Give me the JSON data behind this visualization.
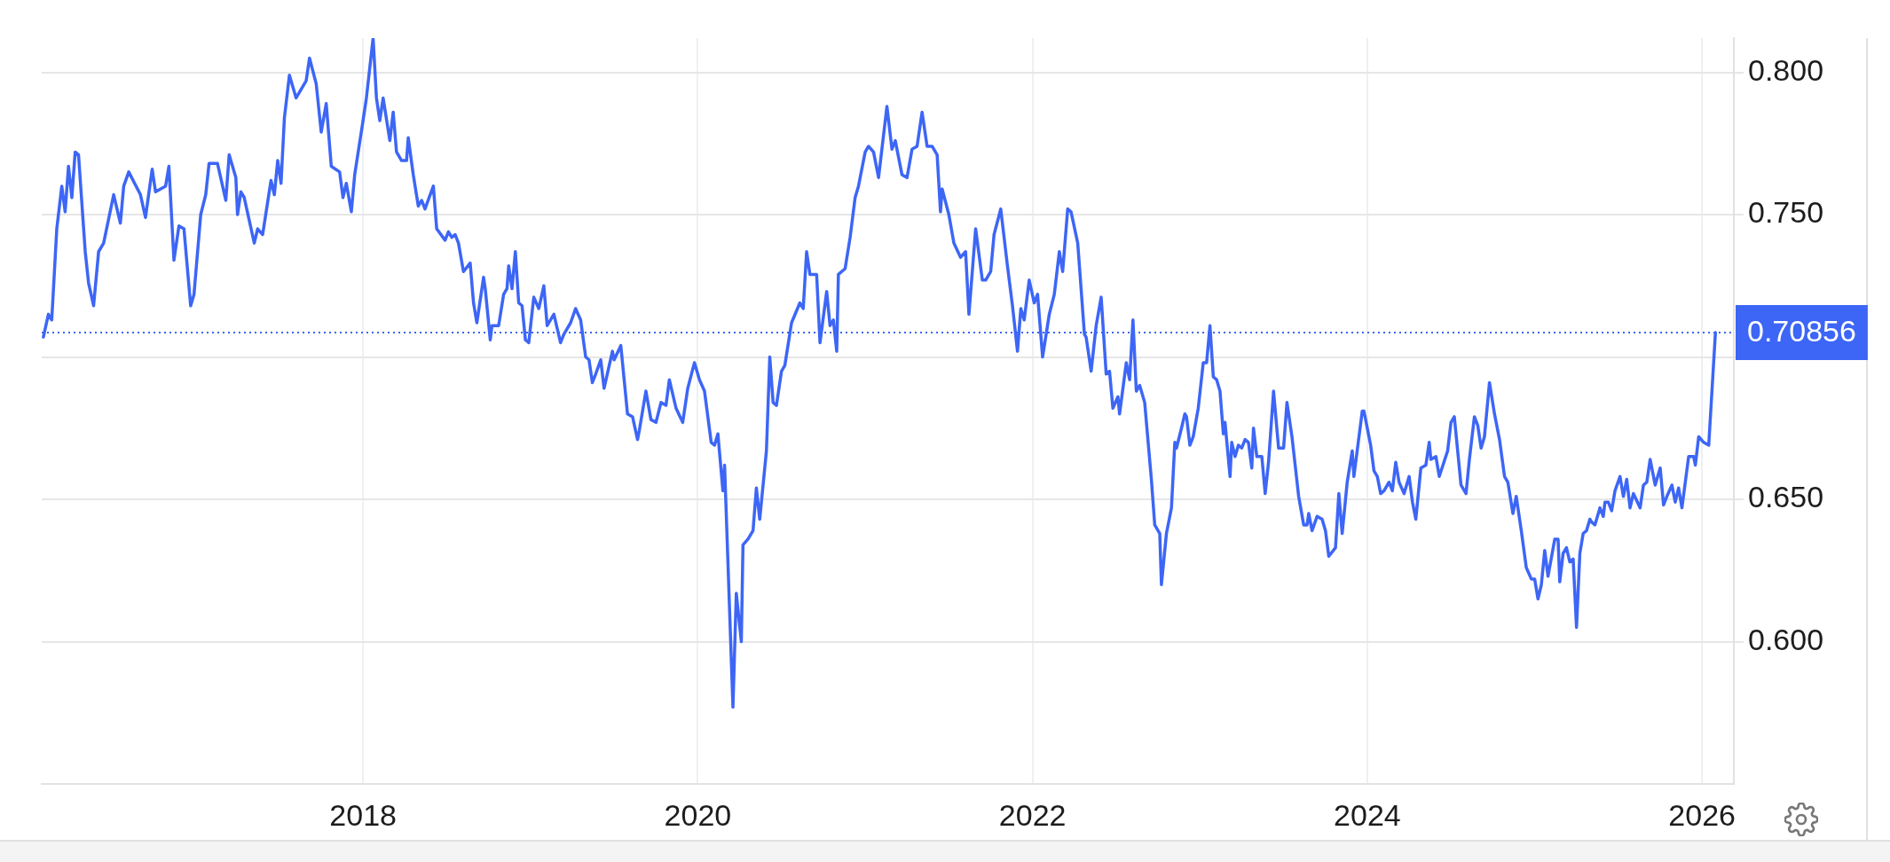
{
  "chart_data": {
    "type": "line",
    "color": "#3d66f6",
    "line_style": "solid",
    "grid": true,
    "xlim": [
      2016.08,
      2026.19
    ],
    "xticks": [
      2018,
      2020,
      2022,
      2024,
      2026
    ],
    "ylim": [
      0.55,
      0.812
    ],
    "yticks": [
      {
        "value": 0.6,
        "label": "0.600"
      },
      {
        "value": 0.65,
        "label": "0.650"
      },
      {
        "value": 0.7,
        "label": null
      },
      {
        "value": 0.75,
        "label": "0.750"
      },
      {
        "value": 0.8,
        "label": "0.800"
      }
    ],
    "ref_lines": [
      {
        "axis": "y",
        "value": 0.70856,
        "label": "0.70856",
        "color": "#3d66f6",
        "line_style": "dotted"
      }
    ],
    "x": [
      2016.09,
      2016.12,
      2016.14,
      2016.17,
      2016.2,
      2016.22,
      2016.24,
      2016.26,
      2016.28,
      2016.3,
      2016.34,
      2016.36,
      2016.39,
      2016.42,
      2016.45,
      2016.51,
      2016.55,
      2016.57,
      2016.6,
      2016.67,
      2016.7,
      2016.74,
      2016.76,
      2016.82,
      2016.84,
      2016.87,
      2016.9,
      2016.93,
      2016.97,
      2016.99,
      2017.03,
      2017.06,
      2017.08,
      2017.13,
      2017.18,
      2017.2,
      2017.24,
      2017.25,
      2017.27,
      2017.29,
      2017.35,
      2017.37,
      2017.4,
      2017.45,
      2017.47,
      2017.49,
      2017.51,
      2017.53,
      2017.56,
      2017.6,
      2017.66,
      2017.68,
      2017.72,
      2017.75,
      2017.78,
      2017.81,
      2017.86,
      2017.88,
      2017.9,
      2017.93,
      2017.95,
      2018.0,
      2018.02,
      2018.06,
      2018.08,
      2018.1,
      2018.12,
      2018.16,
      2018.18,
      2018.2,
      2018.23,
      2018.26,
      2018.27,
      2018.3,
      2018.33,
      2018.35,
      2018.37,
      2018.42,
      2018.44,
      2018.49,
      2018.51,
      2018.53,
      2018.55,
      2018.57,
      2018.6,
      2018.64,
      2018.66,
      2018.68,
      2018.72,
      2018.73,
      2018.76,
      2018.77,
      2018.81,
      2018.84,
      2018.86,
      2018.87,
      2018.89,
      2018.91,
      2018.93,
      2018.95,
      2018.97,
      2018.99,
      2019.02,
      2019.05,
      2019.08,
      2019.1,
      2019.14,
      2019.18,
      2019.2,
      2019.24,
      2019.27,
      2019.3,
      2019.33,
      2019.35,
      2019.37,
      2019.39,
      2019.42,
      2019.44,
      2019.49,
      2019.5,
      2019.54,
      2019.58,
      2019.61,
      2019.64,
      2019.65,
      2019.69,
      2019.72,
      2019.75,
      2019.78,
      2019.81,
      2019.83,
      2019.87,
      2019.91,
      2019.94,
      2019.98,
      2020.01,
      2020.04,
      2020.08,
      2020.1,
      2020.12,
      2020.15,
      2020.16,
      2020.21,
      2020.23,
      2020.26,
      2020.27,
      2020.3,
      2020.33,
      2020.35,
      2020.37,
      2020.41,
      2020.43,
      2020.45,
      2020.47,
      2020.5,
      2020.52,
      2020.56,
      2020.61,
      2020.63,
      2020.65,
      2020.67,
      2020.71,
      2020.73,
      2020.77,
      2020.79,
      2020.81,
      2020.83,
      2020.84,
      2020.88,
      2020.91,
      2020.94,
      2020.96,
      2021.0,
      2021.02,
      2021.05,
      2021.08,
      2021.13,
      2021.16,
      2021.18,
      2021.22,
      2021.25,
      2021.28,
      2021.31,
      2021.34,
      2021.37,
      2021.4,
      2021.43,
      2021.45,
      2021.46,
      2021.5,
      2021.53,
      2021.57,
      2021.6,
      2021.62,
      2021.66,
      2021.7,
      2021.72,
      2021.75,
      2021.77,
      2021.81,
      2021.85,
      2021.88,
      2021.91,
      2021.93,
      2021.95,
      2021.98,
      2022.01,
      2022.03,
      2022.06,
      2022.1,
      2022.13,
      2022.16,
      2022.18,
      2022.21,
      2022.23,
      2022.27,
      2022.31,
      2022.32,
      2022.35,
      2022.38,
      2022.41,
      2022.44,
      2022.46,
      2022.48,
      2022.51,
      2022.52,
      2022.56,
      2022.58,
      2022.6,
      2022.62,
      2022.64,
      2022.67,
      2022.71,
      2022.73,
      2022.76,
      2022.77,
      2022.8,
      2022.83,
      2022.85,
      2022.86,
      2022.89,
      2022.91,
      2022.92,
      2022.94,
      2022.96,
      2022.99,
      2023.02,
      2023.04,
      2023.06,
      2023.08,
      2023.1,
      2023.12,
      2023.14,
      2023.15,
      2023.18,
      2023.19,
      2023.21,
      2023.23,
      2023.25,
      2023.27,
      2023.29,
      2023.31,
      2023.32,
      2023.34,
      2023.37,
      2023.39,
      2023.41,
      2023.44,
      2023.47,
      2023.5,
      2023.52,
      2023.55,
      2023.59,
      2023.62,
      2023.64,
      2023.65,
      2023.67,
      2023.7,
      2023.73,
      2023.75,
      2023.77,
      2023.81,
      2023.83,
      2023.85,
      2023.88,
      2023.91,
      2023.92,
      2023.97,
      2023.98,
      2024.01,
      2024.02,
      2024.04,
      2024.06,
      2024.08,
      2024.1,
      2024.13,
      2024.15,
      2024.17,
      2024.19,
      2024.22,
      2024.25,
      2024.27,
      2024.29,
      2024.32,
      2024.35,
      2024.37,
      2024.38,
      2024.41,
      2024.43,
      2024.48,
      2024.5,
      2024.52,
      2024.56,
      2024.59,
      2024.61,
      2024.64,
      2024.66,
      2024.68,
      2024.7,
      2024.73,
      2024.76,
      2024.79,
      2024.82,
      2024.84,
      2024.87,
      2024.89,
      2024.92,
      2024.95,
      2024.98,
      2025.0,
      2025.02,
      2025.04,
      2025.06,
      2025.08,
      2025.12,
      2025.14,
      2025.15,
      2025.17,
      2025.19,
      2025.21,
      2025.23,
      2025.25,
      2025.27,
      2025.29,
      2025.31,
      2025.33,
      2025.34,
      2025.36,
      2025.39,
      2025.41,
      2025.42,
      2025.44,
      2025.46,
      2025.48,
      2025.51,
      2025.53,
      2025.55,
      2025.57,
      2025.59,
      2025.63,
      2025.65,
      2025.67,
      2025.69,
      2025.72,
      2025.75,
      2025.77,
      2025.79,
      2025.82,
      2025.84,
      2025.86,
      2025.88,
      2025.92,
      2025.95,
      2025.96,
      2025.98,
      2026.01,
      2026.04,
      2026.08
    ],
    "values": [
      0.707,
      0.715,
      0.713,
      0.745,
      0.76,
      0.751,
      0.767,
      0.756,
      0.772,
      0.771,
      0.737,
      0.726,
      0.718,
      0.737,
      0.74,
      0.757,
      0.747,
      0.76,
      0.765,
      0.757,
      0.749,
      0.766,
      0.758,
      0.76,
      0.767,
      0.734,
      0.746,
      0.745,
      0.718,
      0.722,
      0.75,
      0.757,
      0.768,
      0.768,
      0.755,
      0.771,
      0.763,
      0.75,
      0.758,
      0.756,
      0.74,
      0.745,
      0.743,
      0.762,
      0.757,
      0.769,
      0.761,
      0.784,
      0.799,
      0.791,
      0.797,
      0.805,
      0.796,
      0.779,
      0.789,
      0.767,
      0.765,
      0.756,
      0.761,
      0.751,
      0.764,
      0.783,
      0.791,
      0.812,
      0.791,
      0.783,
      0.791,
      0.776,
      0.786,
      0.772,
      0.769,
      0.769,
      0.777,
      0.764,
      0.753,
      0.755,
      0.752,
      0.76,
      0.745,
      0.741,
      0.744,
      0.742,
      0.743,
      0.74,
      0.73,
      0.733,
      0.719,
      0.712,
      0.728,
      0.724,
      0.706,
      0.711,
      0.711,
      0.722,
      0.724,
      0.732,
      0.724,
      0.737,
      0.719,
      0.718,
      0.706,
      0.705,
      0.721,
      0.717,
      0.725,
      0.711,
      0.715,
      0.705,
      0.708,
      0.712,
      0.717,
      0.713,
      0.7,
      0.699,
      0.691,
      0.694,
      0.699,
      0.689,
      0.702,
      0.699,
      0.704,
      0.68,
      0.679,
      0.671,
      0.674,
      0.688,
      0.678,
      0.677,
      0.684,
      0.683,
      0.692,
      0.682,
      0.677,
      0.689,
      0.698,
      0.692,
      0.688,
      0.67,
      0.669,
      0.673,
      0.653,
      0.662,
      0.577,
      0.617,
      0.6,
      0.634,
      0.636,
      0.639,
      0.654,
      0.643,
      0.667,
      0.7,
      0.684,
      0.683,
      0.695,
      0.697,
      0.712,
      0.719,
      0.717,
      0.737,
      0.729,
      0.729,
      0.705,
      0.723,
      0.711,
      0.713,
      0.702,
      0.729,
      0.731,
      0.742,
      0.756,
      0.76,
      0.772,
      0.774,
      0.772,
      0.763,
      0.788,
      0.773,
      0.776,
      0.764,
      0.763,
      0.773,
      0.774,
      0.786,
      0.774,
      0.774,
      0.771,
      0.751,
      0.759,
      0.75,
      0.74,
      0.735,
      0.737,
      0.715,
      0.745,
      0.727,
      0.727,
      0.73,
      0.743,
      0.752,
      0.732,
      0.718,
      0.702,
      0.717,
      0.713,
      0.727,
      0.719,
      0.722,
      0.7,
      0.715,
      0.722,
      0.737,
      0.73,
      0.752,
      0.751,
      0.74,
      0.708,
      0.707,
      0.695,
      0.711,
      0.721,
      0.694,
      0.695,
      0.682,
      0.686,
      0.68,
      0.698,
      0.692,
      0.713,
      0.688,
      0.69,
      0.684,
      0.657,
      0.641,
      0.638,
      0.62,
      0.638,
      0.647,
      0.67,
      0.668,
      0.675,
      0.68,
      0.679,
      0.669,
      0.672,
      0.682,
      0.698,
      0.698,
      0.711,
      0.693,
      0.692,
      0.688,
      0.673,
      0.677,
      0.658,
      0.67,
      0.665,
      0.669,
      0.668,
      0.671,
      0.67,
      0.661,
      0.675,
      0.665,
      0.665,
      0.652,
      0.663,
      0.688,
      0.668,
      0.668,
      0.684,
      0.672,
      0.651,
      0.641,
      0.641,
      0.645,
      0.639,
      0.644,
      0.643,
      0.639,
      0.63,
      0.633,
      0.652,
      0.638,
      0.656,
      0.667,
      0.658,
      0.681,
      0.681,
      0.672,
      0.669,
      0.66,
      0.658,
      0.652,
      0.653,
      0.656,
      0.653,
      0.663,
      0.656,
      0.652,
      0.658,
      0.649,
      0.643,
      0.661,
      0.662,
      0.67,
      0.664,
      0.665,
      0.658,
      0.667,
      0.677,
      0.679,
      0.655,
      0.652,
      0.664,
      0.679,
      0.676,
      0.668,
      0.672,
      0.691,
      0.68,
      0.671,
      0.658,
      0.656,
      0.645,
      0.651,
      0.639,
      0.626,
      0.622,
      0.622,
      0.615,
      0.62,
      0.632,
      0.623,
      0.636,
      0.636,
      0.621,
      0.631,
      0.633,
      0.628,
      0.629,
      0.605,
      0.631,
      0.638,
      0.639,
      0.643,
      0.642,
      0.641,
      0.647,
      0.644,
      0.649,
      0.649,
      0.646,
      0.653,
      0.658,
      0.651,
      0.657,
      0.647,
      0.652,
      0.647,
      0.655,
      0.656,
      0.664,
      0.655,
      0.661,
      0.648,
      0.651,
      0.655,
      0.649,
      0.654,
      0.647,
      0.665,
      0.665,
      0.662,
      0.672,
      0.67,
      0.669,
      0.70856
    ]
  }
}
